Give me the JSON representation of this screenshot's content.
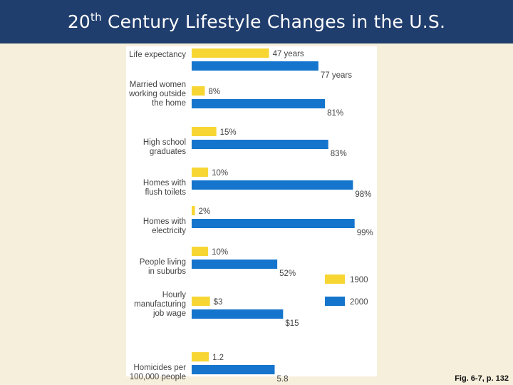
{
  "title": {
    "pre": "20",
    "sup": "th",
    "post": " Century Lifestyle Changes in the U.S."
  },
  "caption": "Fig. 6-7, p. 132",
  "colors": {
    "y1900": "#f7d634",
    "y2000": "#1575cc",
    "text": "#444444",
    "title_bg": "#1f3d6d"
  },
  "chart_data": {
    "type": "bar",
    "orientation": "horizontal",
    "title": "20th Century Lifestyle Changes in the U.S.",
    "legend": [
      "1900",
      "2000"
    ],
    "legend_position": "right",
    "categories": [
      {
        "label": [
          "Life expectancy"
        ],
        "v1900": 47,
        "v2000": 77,
        "l1900": "47 years",
        "l2000": "77 years"
      },
      {
        "label": [
          "Married women",
          "working outside",
          "the home"
        ],
        "v1900": 8,
        "v2000": 81,
        "l1900": "8%",
        "l2000": "81%"
      },
      {
        "label": [
          "High school",
          "graduates"
        ],
        "v1900": 15,
        "v2000": 83,
        "l1900": "15%",
        "l2000": "83%"
      },
      {
        "label": [
          "Homes with",
          "flush toilets"
        ],
        "v1900": 10,
        "v2000": 98,
        "l1900": "10%",
        "l2000": "98%"
      },
      {
        "label": [
          "Homes with",
          "electricity"
        ],
        "v1900": 2,
        "v2000": 99,
        "l1900": "2%",
        "l2000": "99%"
      },
      {
        "label": [
          "People living",
          "in suburbs"
        ],
        "v1900": 10,
        "v2000": 52,
        "l1900": "10%",
        "l2000": "52%"
      },
      {
        "label": [
          "Hourly",
          "manufacturing",
          "job wage"
        ],
        "v1900": 3,
        "v2000": 15,
        "l1900": "$3",
        "l2000": "$15",
        "scale_max": 27
      },
      {
        "label": [
          "Homicides per",
          "100,000 people"
        ],
        "v1900": 1.2,
        "v2000": 5.8,
        "l1900": "1.2",
        "l2000": "5.8",
        "scale_max": 11.5
      }
    ]
  }
}
